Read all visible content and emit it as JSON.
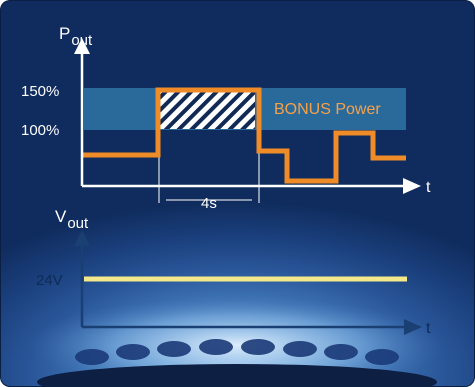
{
  "top_chart": {
    "y_axis_label": "P",
    "y_axis_label_sub": "out",
    "x_axis_label": "t",
    "level_high_label": "150%",
    "level_low_label": "100%",
    "band_label": "BONUS Power",
    "duration_label": "4s"
  },
  "bottom_chart": {
    "y_axis_label": "V",
    "y_axis_label_sub": "out",
    "x_axis_label": "t",
    "level_label": "24V"
  },
  "colors": {
    "band": "#2a6a9a",
    "power_trace": "#f08c28",
    "voltage_trace": "#f4e98a",
    "axis": "#ffffff",
    "axis_label_text": "#0d2b56"
  }
}
